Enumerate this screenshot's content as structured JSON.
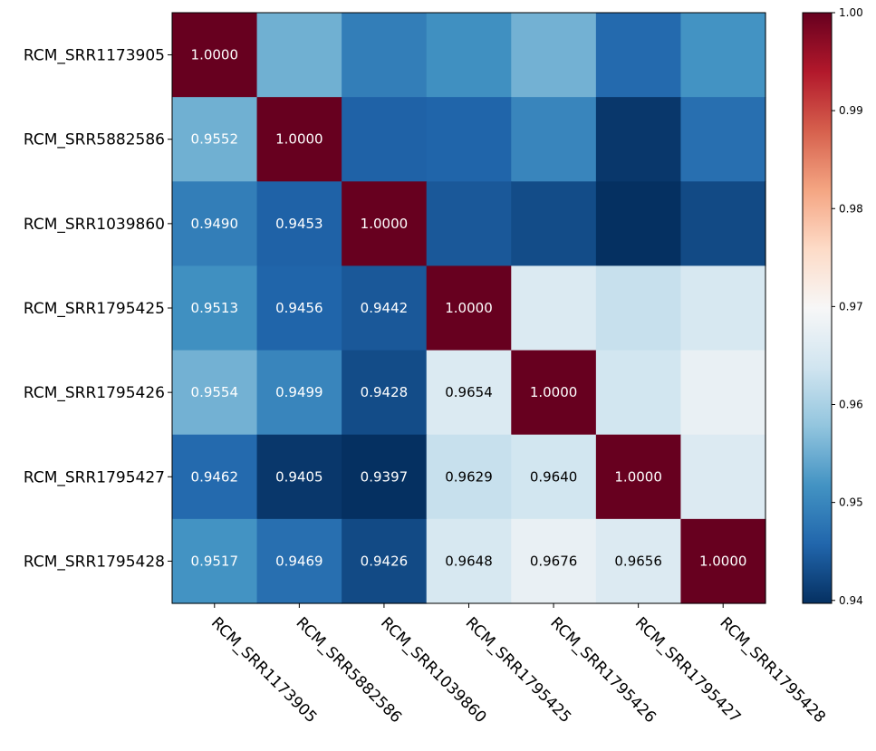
{
  "chart_data": {
    "type": "heatmap",
    "title": "",
    "xlabel": "",
    "ylabel": "",
    "rows": [
      "RCM_SRR1173905",
      "RCM_SRR5882586",
      "RCM_SRR1039860",
      "RCM_SRR1795425",
      "RCM_SRR1795426",
      "RCM_SRR1795427",
      "RCM_SRR1795428"
    ],
    "columns": [
      "RCM_SRR1173905",
      "RCM_SRR5882586",
      "RCM_SRR1039860",
      "RCM_SRR1795425",
      "RCM_SRR1795426",
      "RCM_SRR1795427",
      "RCM_SRR1795428"
    ],
    "values": [
      [
        1.0,
        0.9552,
        0.949,
        0.9513,
        0.9554,
        0.9462,
        0.9517
      ],
      [
        0.9552,
        1.0,
        0.9453,
        0.9456,
        0.9499,
        0.9405,
        0.9469
      ],
      [
        0.949,
        0.9453,
        1.0,
        0.9442,
        0.9428,
        0.9397,
        0.9426
      ],
      [
        0.9513,
        0.9456,
        0.9442,
        1.0,
        0.9654,
        0.9629,
        0.9648
      ],
      [
        0.9554,
        0.9499,
        0.9428,
        0.9654,
        1.0,
        0.964,
        0.9676
      ],
      [
        0.9462,
        0.9405,
        0.9397,
        0.9629,
        0.964,
        1.0,
        0.9656
      ],
      [
        0.9517,
        0.9469,
        0.9426,
        0.9648,
        0.9676,
        0.9656,
        1.0
      ]
    ],
    "cell_labels": [
      [
        "1.0000",
        "",
        "",
        "",
        "",
        "",
        ""
      ],
      [
        "0.9552",
        "1.0000",
        "",
        "",
        "",
        "",
        ""
      ],
      [
        "0.9490",
        "0.9453",
        "1.0000",
        "",
        "",
        "",
        ""
      ],
      [
        "0.9513",
        "0.9456",
        "0.9442",
        "1.0000",
        "",
        "",
        ""
      ],
      [
        "0.9554",
        "0.9499",
        "0.9428",
        "0.9654",
        "1.0000",
        "",
        ""
      ],
      [
        "0.9462",
        "0.9405",
        "0.9397",
        "0.9629",
        "0.9640",
        "1.0000",
        ""
      ],
      [
        "0.9517",
        "0.9469",
        "0.9426",
        "0.9648",
        "0.9676",
        "0.9656",
        "1.0000"
      ]
    ],
    "colormap": "RdBu_r",
    "color_range": [
      0.9397,
      1.0
    ],
    "colorbar_ticks": [
      "1.00",
      "0.99",
      "0.98",
      "0.97",
      "0.96",
      "0.95",
      "0.94"
    ],
    "colorbar_tick_values": [
      1.0,
      0.99,
      0.98,
      0.97,
      0.96,
      0.95,
      0.94
    ],
    "x_tick_rotation": "-45 degrees",
    "grid": false,
    "legend": "colorbar-right"
  }
}
